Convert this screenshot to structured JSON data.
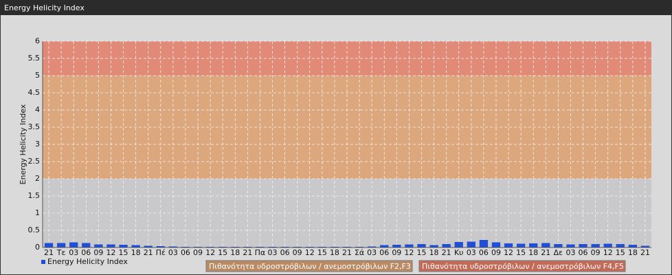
{
  "chart_data": {
    "type": "bar",
    "title": "Energy Helicity Index",
    "y_label": "Energy Helicity Index",
    "categories": [
      "21",
      "Τε",
      "03",
      "06",
      "09",
      "12",
      "15",
      "18",
      "21",
      "Πέ",
      "03",
      "06",
      "09",
      "12",
      "15",
      "18",
      "21",
      "Πα",
      "03",
      "06",
      "09",
      "12",
      "15",
      "18",
      "21",
      "Σά",
      "03",
      "06",
      "09",
      "12",
      "15",
      "18",
      "21",
      "Κυ",
      "03",
      "06",
      "09",
      "12",
      "15",
      "18",
      "21",
      "Δε",
      "03",
      "06",
      "09",
      "12",
      "15",
      "18",
      "21"
    ],
    "series": [
      {
        "name": "Energy Helicity Index",
        "color": "#1f4fd8",
        "values": [
          0.13,
          0.13,
          0.15,
          0.13,
          0.09,
          0.09,
          0.08,
          0.07,
          0.05,
          0.04,
          0.03,
          0.02,
          0.02,
          0.02,
          0.02,
          0.02,
          0.02,
          0.02,
          0.02,
          0.02,
          0.02,
          0.02,
          0.02,
          0.02,
          0.02,
          0.02,
          0.03,
          0.07,
          0.08,
          0.09,
          0.1,
          0.07,
          0.1,
          0.16,
          0.17,
          0.22,
          0.15,
          0.12,
          0.11,
          0.12,
          0.13,
          0.1,
          0.09,
          0.1,
          0.1,
          0.11,
          0.1,
          0.08,
          0.05
        ]
      }
    ],
    "bands": [
      {
        "from": 0,
        "to": 2,
        "color": "#c9c9cb"
      },
      {
        "from": 2,
        "to": 5,
        "color": "#dca77c",
        "name": "Πιθανότητα υδροστρόβιλων / ανεμοστρόβιλων F2,F3",
        "legend_color": "#b98a63"
      },
      {
        "from": 5,
        "to": 6,
        "color": "#e08a77",
        "name": "Πιθανότητα υδροστρόβιλων / ανεμοστρόβιλων F4,F5",
        "legend_color": "#c46a58"
      }
    ],
    "ylim": [
      0,
      6
    ],
    "yticks": [
      0,
      0.5,
      1,
      1.5,
      2,
      2.5,
      3,
      3.5,
      4,
      4.5,
      5,
      5.5,
      6
    ],
    "grid": true
  }
}
